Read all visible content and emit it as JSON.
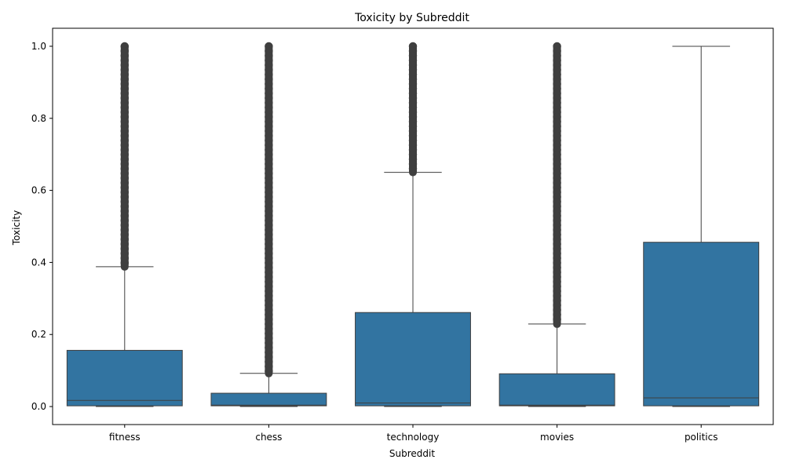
{
  "chart_data": {
    "type": "box",
    "title": "Toxicity by Subreddit",
    "xlabel": "Subreddit",
    "ylabel": "Toxicity",
    "ylim": [
      -0.05,
      1.05
    ],
    "yticks": [
      "0.0",
      "0.2",
      "0.4",
      "0.6",
      "0.8",
      "1.0"
    ],
    "ytick_values": [
      0.0,
      0.2,
      0.4,
      0.6,
      0.8,
      1.0
    ],
    "categories": [
      "fitness",
      "chess",
      "technology",
      "movies",
      "politics"
    ],
    "boxes": [
      {
        "min": 0.0,
        "q1": 0.002,
        "median": 0.017,
        "q3": 0.156,
        "max": 0.388,
        "outliers_from": 0.388,
        "outliers_to": 1.0
      },
      {
        "min": 0.0,
        "q1": 0.002,
        "median": 0.004,
        "q3": 0.037,
        "max": 0.092,
        "outliers_from": 0.092,
        "outliers_to": 1.0
      },
      {
        "min": 0.0,
        "q1": 0.002,
        "median": 0.01,
        "q3": 0.261,
        "max": 0.65,
        "outliers_from": 0.65,
        "outliers_to": 1.0
      },
      {
        "min": 0.0,
        "q1": 0.002,
        "median": 0.004,
        "q3": 0.091,
        "max": 0.229,
        "outliers_from": 0.229,
        "outliers_to": 1.0
      },
      {
        "min": 0.0,
        "q1": 0.002,
        "median": 0.024,
        "q3": 0.456,
        "max": 1.0,
        "outliers_from": null,
        "outliers_to": null
      }
    ],
    "box_color": "#3274a1",
    "line_color": "#3f3f3f",
    "grid": false,
    "legend": "none"
  }
}
